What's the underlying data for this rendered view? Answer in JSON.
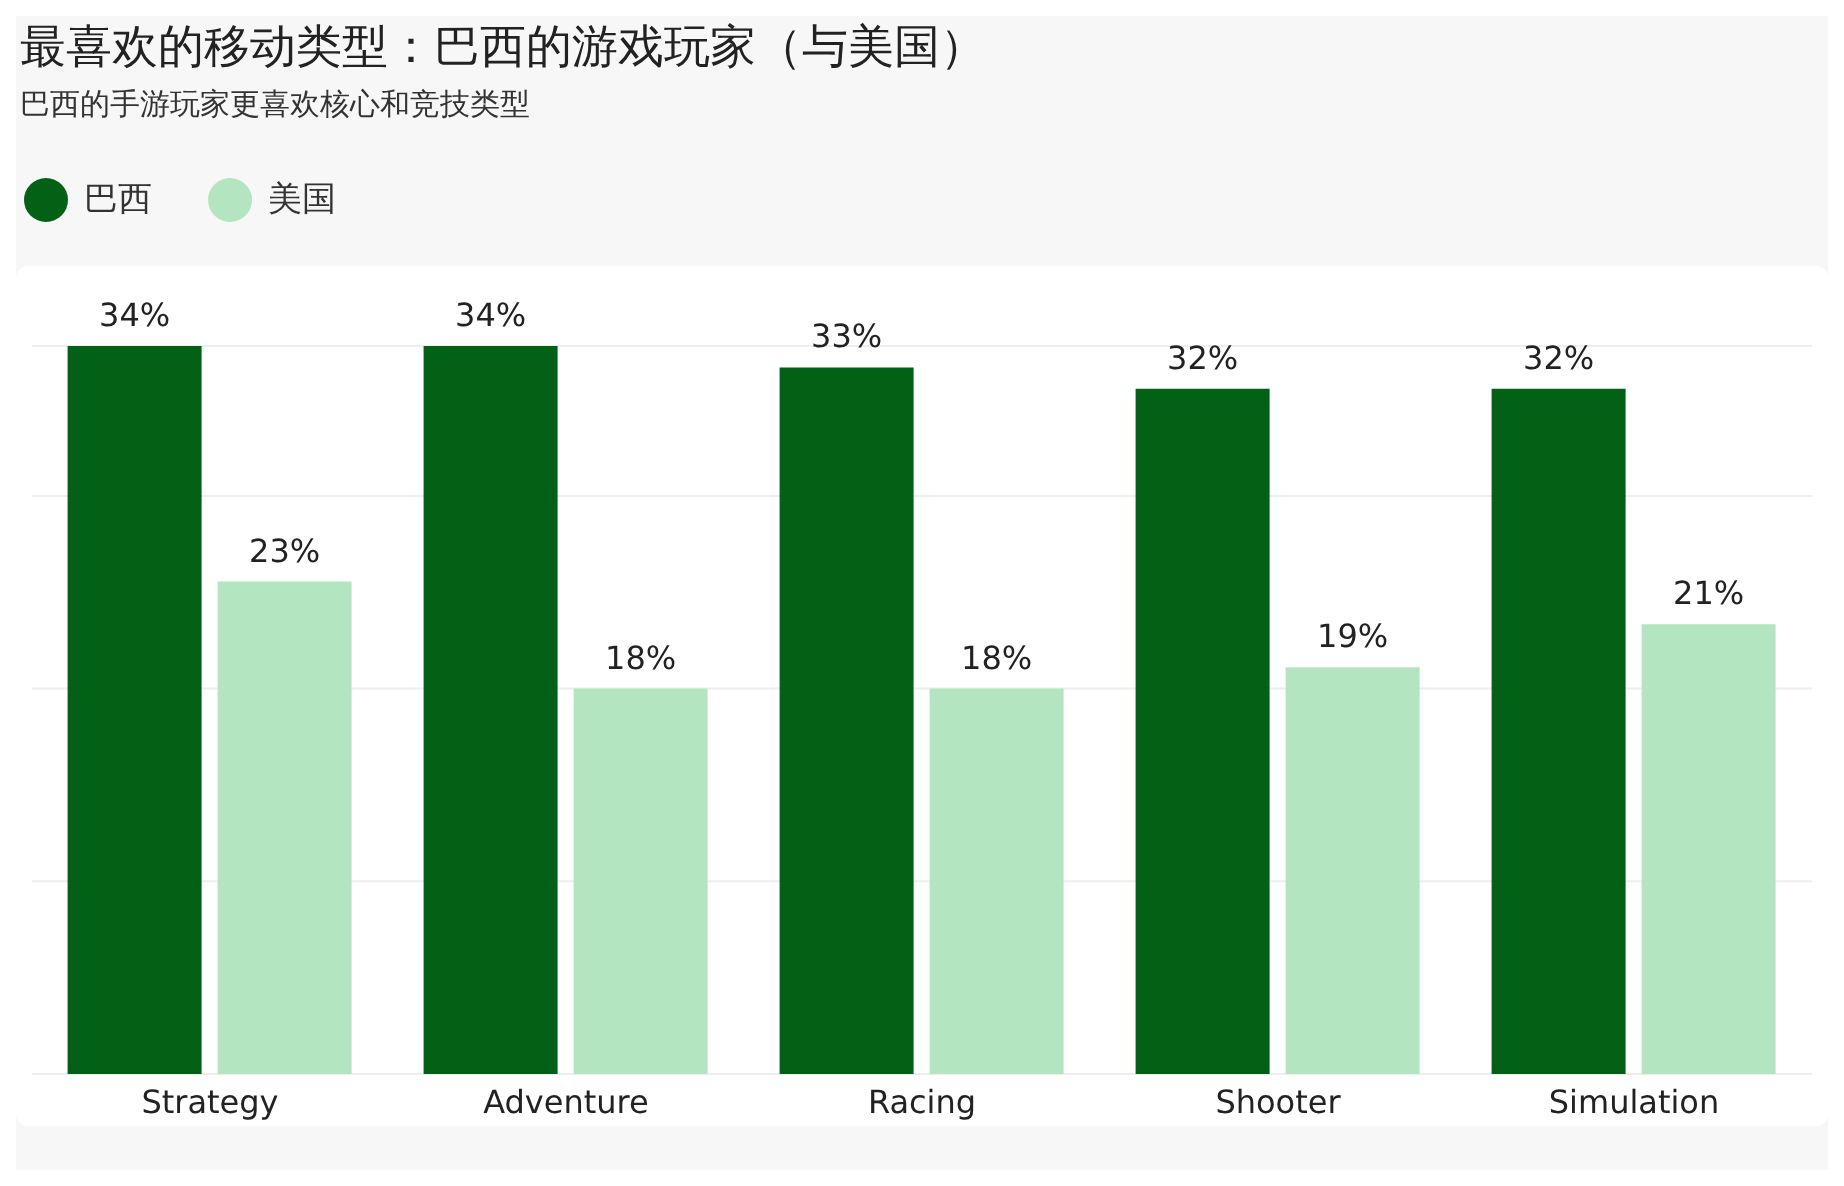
{
  "chart_data": {
    "type": "bar",
    "title": "最喜欢的移动类型：巴西的游戏玩家（与美国）",
    "subtitle": "巴西的手游玩家更喜欢核心和竞技类型",
    "categories": [
      "Strategy",
      "Adventure",
      "Racing",
      "Shooter",
      "Simulation"
    ],
    "series": [
      {
        "name": "巴西",
        "color": "#036116",
        "values": [
          34,
          34,
          33,
          32,
          32
        ],
        "value_labels": [
          "34%",
          "34%",
          "33%",
          "32%",
          "32%"
        ]
      },
      {
        "name": "美国",
        "color": "#b3e5c1",
        "values": [
          23,
          18,
          18,
          19,
          21
        ],
        "value_labels": [
          "23%",
          "18%",
          "18%",
          "19%",
          "21%"
        ]
      }
    ],
    "legend": "top left",
    "grid": "y"
  }
}
